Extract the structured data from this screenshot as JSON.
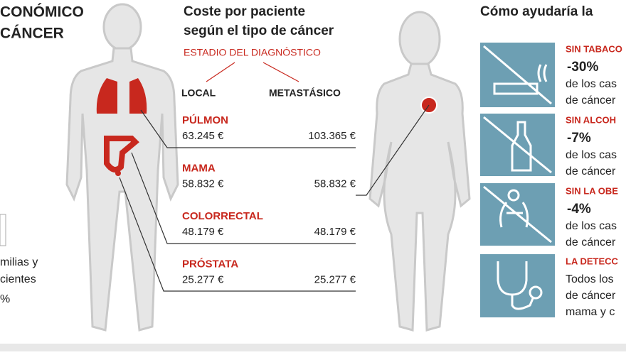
{
  "left": {
    "title": [
      "CONÓMICO",
      "CÁNCER"
    ],
    "note": [
      "milias y",
      "cientes",
      "%"
    ]
  },
  "costs": {
    "title": [
      "Coste por paciente",
      "según el tipo de cáncer"
    ],
    "stage_label": "ESTADIO DEL DIAGNÓSTICO",
    "columns": [
      "LOCAL",
      "METASTÁSICO"
    ],
    "rows": [
      {
        "name": "PÚLMON",
        "local": "63.245 €",
        "metastatic": "103.365 €"
      },
      {
        "name": "MAMA",
        "local": "58.832 €",
        "metastatic": "58.832 €"
      },
      {
        "name": "COLORRECTAL",
        "local": "48.179 €",
        "metastatic": "48.179 €"
      },
      {
        "name": "PRÓSTATA",
        "local": "25.277 €",
        "metastatic": "25.277 €"
      }
    ]
  },
  "prevention": {
    "title": "Cómo ayudaría la",
    "items": [
      {
        "heading": "SIN TABACO",
        "percent": "-30%",
        "text": [
          "de los cas",
          "de cáncer"
        ]
      },
      {
        "heading": "SIN ALCOH",
        "percent": "-7%",
        "text": [
          "de los cas",
          "de cáncer"
        ]
      },
      {
        "heading": "SIN LA OBE",
        "percent": "-4%",
        "text": [
          "de los cas",
          "de cáncer"
        ]
      },
      {
        "heading": "LA DETECC",
        "text": [
          "Todos los",
          "de cáncer",
          "mama y c"
        ]
      }
    ]
  }
}
